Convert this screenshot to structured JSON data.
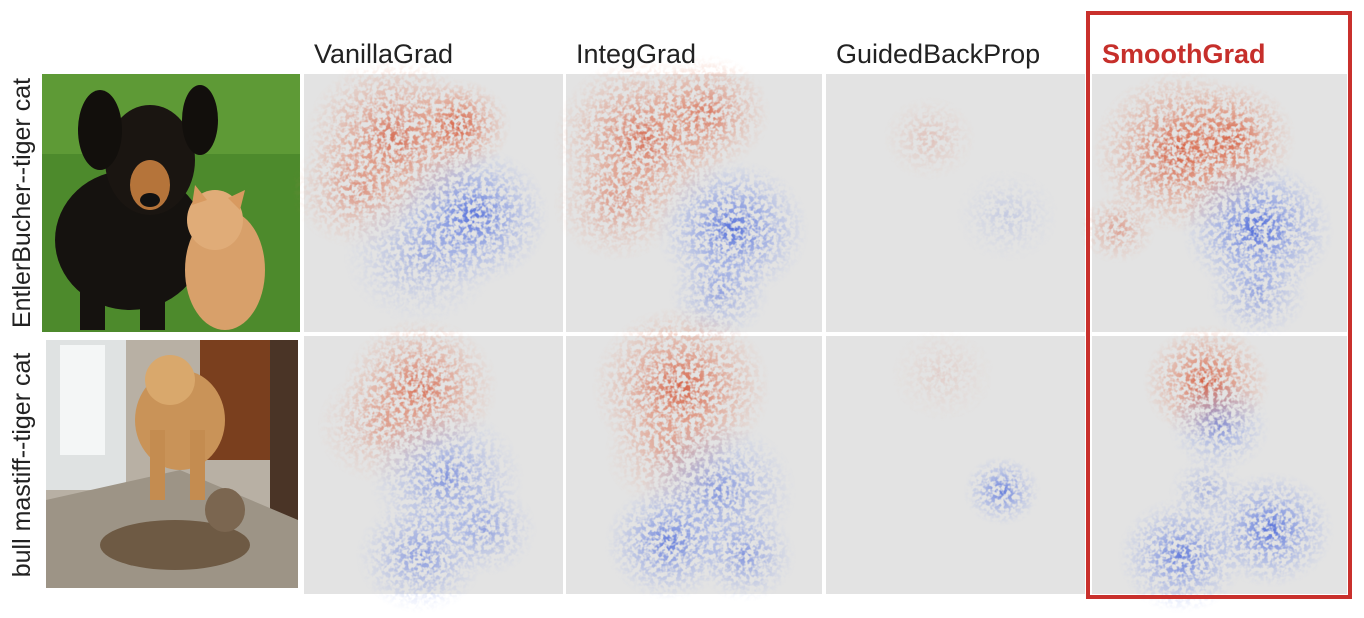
{
  "columns": [
    "VanillaGrad",
    "IntegGrad",
    "GuidedBackProp",
    "SmoothGrad"
  ],
  "rows": [
    "EntlerBucher--tiger cat",
    "bull mastiff--tiger cat"
  ]
}
